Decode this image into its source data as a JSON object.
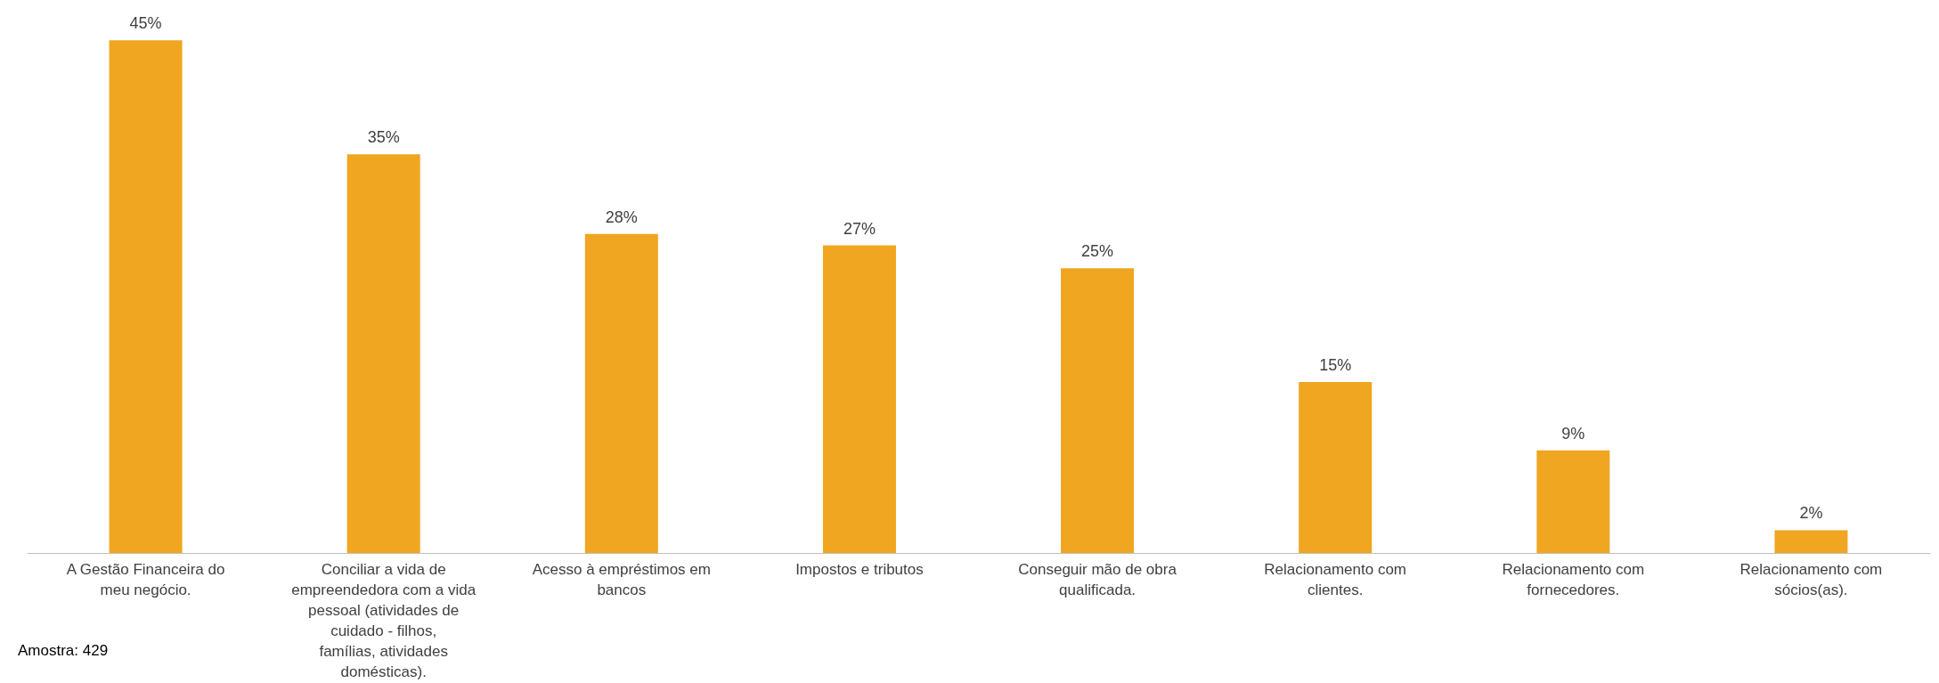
{
  "chart_data": {
    "type": "bar",
    "categories": [
      "A Gestão Financeira do meu negócio.",
      "Conciliar a vida de empreendedora com a vida pessoal (atividades de cuidado - filhos, famílias, atividades domésticas).",
      "Acesso à empréstimos em bancos",
      "Impostos e tributos",
      "Conseguir mão de obra qualificada.",
      "Relacionamento com clientes.",
      "Relacionamento com fornecedores.",
      "Relacionamento com sócios(as)."
    ],
    "values": [
      45,
      35,
      28,
      27,
      25,
      15,
      9,
      2
    ],
    "value_labels": [
      "45%",
      "35%",
      "28%",
      "27%",
      "25%",
      "15%",
      "9%",
      "2%"
    ],
    "color": "#f0a620",
    "grid": false,
    "annotations": [
      "Amostra: 429"
    ]
  }
}
